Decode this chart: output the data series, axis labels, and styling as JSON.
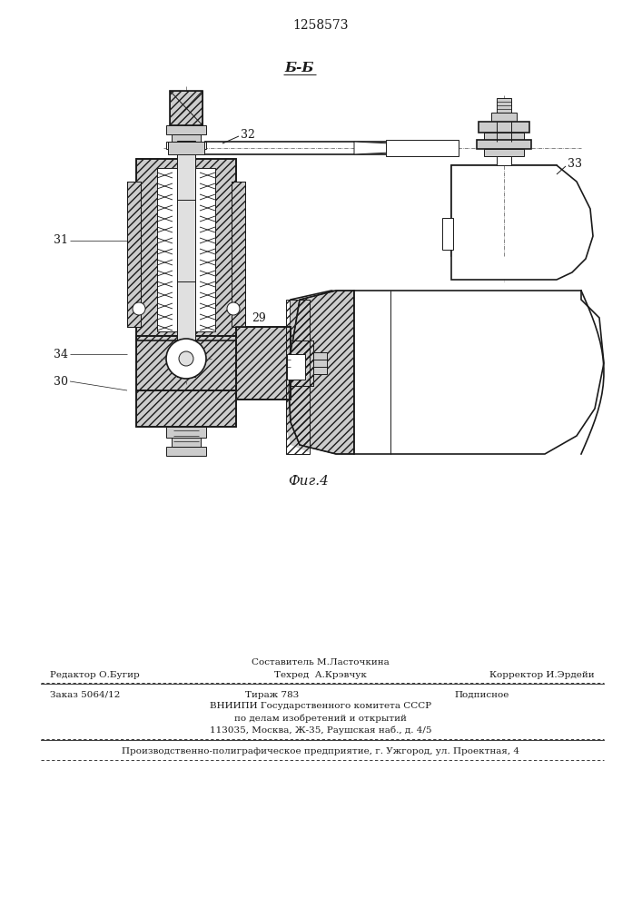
{
  "patent_number": "1258573",
  "section_label": "Б-Б",
  "fig_label": "Фиг.4",
  "bg_color": "#ffffff",
  "line_color": "#1a1a1a",
  "footer_line0_center": "Составитель М.Ласточкина",
  "footer_line1_left": "Редактор О.Бугир",
  "footer_line1_center": "Техред  А.Крэвчук",
  "footer_line1_right": "Корректор И.Эрдейи",
  "footer_line2_left": "Заказ 5064/12",
  "footer_line2_center": "Тираж 783",
  "footer_line2_right": "Подписное",
  "footer_line3": "ВНИИПИ Государственного комитета СССР",
  "footer_line4": "по делам изобретений и открытий",
  "footer_line5": "113035, Москва, Ж-35, Раушская наб., д. 4/5",
  "footer_last": "Производственно-полиграфическое предприятие, г. Ужгород, ул. Проектная, 4",
  "label_29": "29",
  "label_30": "30",
  "label_31": "31",
  "label_32": "32",
  "label_33": "33",
  "label_34": "34"
}
